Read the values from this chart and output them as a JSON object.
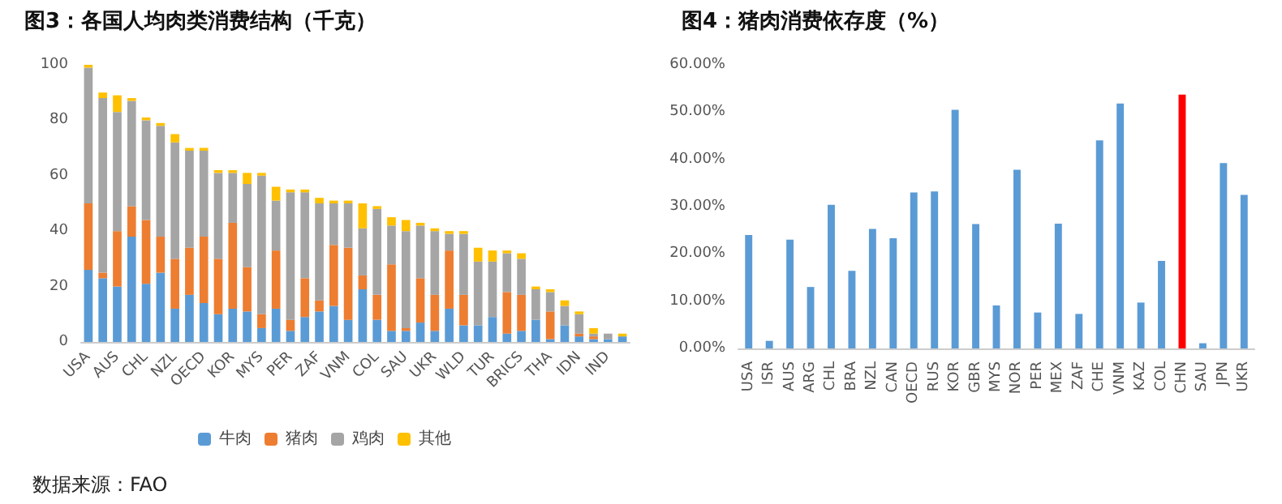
{
  "chart_data": [
    {
      "type": "bar",
      "title": "图3：各国人均肉类消费结构（千克）",
      "stacked": true,
      "legend": "bottom",
      "grid": false,
      "ylim": [
        0,
        100
      ],
      "yticks": [
        0,
        20,
        40,
        60,
        80,
        100
      ],
      "annotations": [
        "数据来源：FAO"
      ],
      "categories": [
        "USA",
        null,
        "AUS",
        null,
        "CHL",
        null,
        "NZL",
        null,
        "OECD",
        null,
        "KOR",
        null,
        "MYS",
        null,
        "PER",
        null,
        "ZAF",
        null,
        "VNM",
        null,
        "COL",
        null,
        "SAU",
        null,
        "UKR",
        null,
        "WLD",
        null,
        "TUR",
        null,
        "BRICS",
        null,
        "THA",
        null,
        "IDN",
        null,
        "IND",
        null
      ],
      "series": [
        {
          "name": "牛肉",
          "color": "#5b9bd5",
          "values": [
            26,
            23,
            20,
            38,
            21,
            25,
            12,
            17,
            14,
            10,
            12,
            11,
            5,
            12,
            4,
            9,
            11,
            13,
            8,
            19,
            8,
            4,
            4,
            7,
            4,
            12,
            6,
            6,
            9,
            3,
            4,
            8,
            1,
            6,
            2,
            1,
            1,
            2
          ]
        },
        {
          "name": "猪肉",
          "color": "#ed7d31",
          "values": [
            24,
            2,
            20,
            11,
            23,
            13,
            18,
            17,
            24,
            20,
            31,
            16,
            5,
            21,
            4,
            14,
            4,
            22,
            26,
            5,
            9,
            24,
            1,
            16,
            13,
            21,
            11,
            0,
            0,
            15,
            13,
            0,
            10,
            0,
            1,
            1,
            0,
            0
          ]
        },
        {
          "name": "鸡肉",
          "color": "#a5a5a5",
          "values": [
            49,
            63,
            43,
            38,
            36,
            40,
            42,
            35,
            31,
            31,
            18,
            30,
            50,
            18,
            46,
            31,
            35,
            15,
            16,
            17,
            31,
            14,
            35,
            19,
            23,
            6,
            22,
            23,
            20,
            14,
            13,
            11,
            7,
            7,
            7,
            1,
            2,
            0
          ]
        },
        {
          "name": "其他",
          "color": "#ffc000",
          "values": [
            1,
            2,
            6,
            1,
            1,
            1,
            3,
            1,
            1,
            1,
            1,
            4,
            1,
            5,
            1,
            1,
            2,
            1,
            1,
            9,
            1,
            3,
            4,
            1,
            1,
            1,
            1,
            5,
            4,
            1,
            2,
            1,
            1,
            2,
            1,
            2,
            0,
            1
          ]
        }
      ]
    },
    {
      "type": "bar",
      "title": "图4：猪肉消费依存度（%）",
      "grid": false,
      "ylim": [
        0,
        60
      ],
      "yticks": [
        {
          "value": 0,
          "label": "0.00%"
        },
        {
          "value": 10,
          "label": "10.00%"
        },
        {
          "value": 20,
          "label": "20.00%"
        },
        {
          "value": 30,
          "label": "30.00%"
        },
        {
          "value": 40,
          "label": "40.00%"
        },
        {
          "value": 50,
          "label": "50.00%"
        },
        {
          "value": 60,
          "label": "60.00%"
        }
      ],
      "categories": [
        "USA",
        "ISR",
        "AUS",
        "ARG",
        "CHL",
        "BRA",
        "NZL",
        "CAN",
        "OECD",
        "RUS",
        "KOR",
        "GBR",
        "MYS",
        "NOR",
        "PER",
        "MEX",
        "ZAF",
        "CHE",
        "VNM",
        "KAZ",
        "COL",
        "CHN",
        "SAU",
        "JPN",
        "UKR"
      ],
      "values": [
        24,
        1.6,
        23,
        13,
        30.4,
        16.4,
        25.3,
        23.3,
        33,
        33.2,
        50.5,
        26.3,
        9.1,
        37.8,
        7.6,
        26.4,
        7.3,
        44,
        51.8,
        9.7,
        18.5,
        53.7,
        1.1,
        39.2,
        32.5
      ],
      "colors": [
        "#5b9bd5",
        "#5b9bd5",
        "#5b9bd5",
        "#5b9bd5",
        "#5b9bd5",
        "#5b9bd5",
        "#5b9bd5",
        "#5b9bd5",
        "#5b9bd5",
        "#5b9bd5",
        "#5b9bd5",
        "#5b9bd5",
        "#5b9bd5",
        "#5b9bd5",
        "#5b9bd5",
        "#5b9bd5",
        "#5b9bd5",
        "#5b9bd5",
        "#5b9bd5",
        "#5b9bd5",
        "#5b9bd5",
        "#ff0000",
        "#5b9bd5",
        "#5b9bd5",
        "#5b9bd5"
      ]
    }
  ]
}
